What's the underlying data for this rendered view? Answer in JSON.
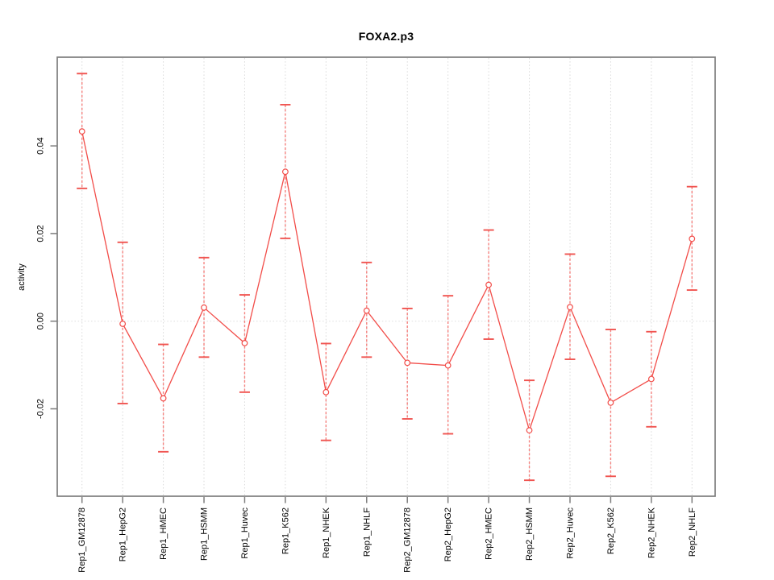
{
  "chart": {
    "title": "FOXA2.p3",
    "ylabel": "activity"
  },
  "chart_data": {
    "type": "line",
    "title": "FOXA2.p3",
    "xlabel": "",
    "ylabel": "activity",
    "categories": [
      "Rep1_GM12878",
      "Rep1_HepG2",
      "Rep1_HMEC",
      "Rep1_HSMM",
      "Rep1_Huvec",
      "Rep1_K562",
      "Rep1_NHEK",
      "Rep1_NHLF",
      "Rep2_GM12878",
      "Rep2_HepG2",
      "Rep2_HMEC",
      "Rep2_HSMM",
      "Rep2_Huvec",
      "Rep2_K562",
      "Rep2_NHEK",
      "Rep2_NHLF"
    ],
    "series": [
      {
        "name": "activity",
        "marker": "open-circle",
        "values": [
          0.0433,
          -0.0006,
          -0.0176,
          0.0031,
          -0.005,
          0.0341,
          -0.0162,
          0.0024,
          -0.0095,
          -0.0101,
          0.0083,
          -0.0249,
          0.0032,
          -0.0186,
          -0.0132,
          0.0188
        ],
        "ci_high": [
          0.0565,
          0.018,
          -0.0053,
          0.0145,
          0.006,
          0.0494,
          -0.0051,
          0.0134,
          0.0029,
          0.0058,
          0.0208,
          -0.0135,
          0.0153,
          -0.0019,
          -0.0024,
          0.0307
        ],
        "ci_low": [
          0.0303,
          -0.0188,
          -0.0298,
          -0.0082,
          -0.0162,
          0.0189,
          -0.0272,
          -0.0082,
          -0.0223,
          -0.0257,
          -0.0041,
          -0.0363,
          -0.0087,
          -0.0354,
          -0.0241,
          0.0071
        ]
      }
    ],
    "ylim": [
      -0.04,
      0.06
    ],
    "yticks": [
      -0.02,
      0.0,
      0.02,
      0.04
    ],
    "ytick_labels": [
      "-0.02",
      "0.00",
      "0.02",
      "0.04"
    ],
    "legend": "none",
    "grid": "vertical dotted gridline at each category; dotted horizontal line at y=0 only",
    "tick_label_rotation": "both axes labels rotated 90deg (vertical text)",
    "colors": {
      "line": "#f24d49",
      "marker_stroke": "#f24d49",
      "marker_fill": "#ffffff",
      "error_bar_body": "#f5827f",
      "error_bar_cap": "#f05450",
      "grid": "#d9d9d9",
      "zero_line": "#dedede",
      "axis": "#7d7d7d",
      "text": "#000000",
      "background": "#ffffff"
    }
  }
}
